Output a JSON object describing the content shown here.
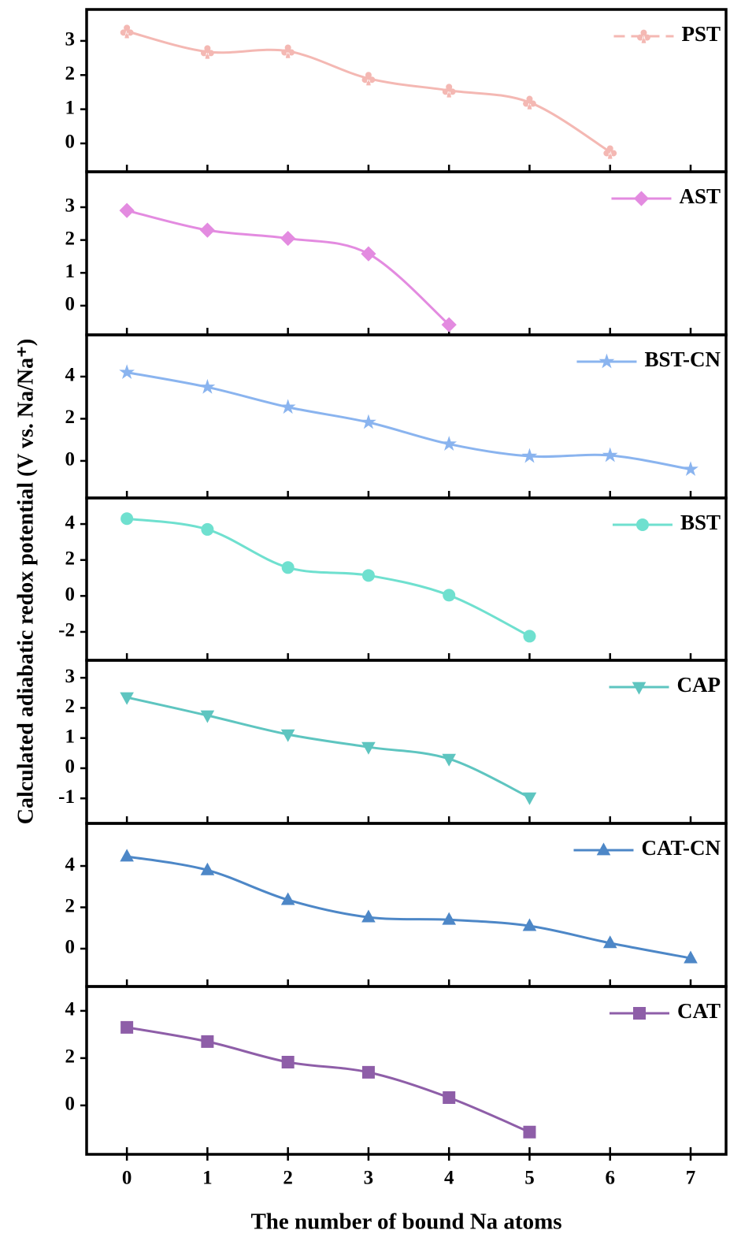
{
  "chart_data": [
    {
      "type": "line",
      "ylabel": "Calculated adiabatic redox potential (V vs. Na/Na⁺)",
      "xlim": [
        -0.5,
        7.44
      ],
      "xticks": [
        0,
        1,
        2,
        3,
        4,
        5,
        6,
        7
      ],
      "ylim": [
        -0.83,
        3.92
      ],
      "yticks": [
        0,
        1,
        2,
        3
      ],
      "series": [
        {
          "name": "PST",
          "color": "#f4b8b3",
          "marker": "club",
          "dashed_legend": true,
          "x": [
            0,
            1,
            2,
            3,
            4,
            5,
            6
          ],
          "values": [
            3.28,
            2.68,
            2.7,
            1.9,
            1.55,
            1.2,
            -0.25
          ]
        }
      ]
    },
    {
      "type": "line",
      "xlim": [
        -0.5,
        7.44
      ],
      "xticks": [
        0,
        1,
        2,
        3,
        4,
        5,
        6,
        7
      ],
      "ylim": [
        -0.89,
        4.08
      ],
      "yticks": [
        0,
        1,
        2,
        3
      ],
      "series": [
        {
          "name": "AST",
          "color": "#e38be0",
          "marker": "diamond",
          "x": [
            0,
            1,
            2,
            3,
            4
          ],
          "values": [
            2.9,
            2.3,
            2.05,
            1.58,
            -0.58
          ]
        }
      ]
    },
    {
      "type": "line",
      "xlim": [
        -0.5,
        7.44
      ],
      "xticks": [
        0,
        1,
        2,
        3,
        4,
        5,
        6,
        7
      ],
      "ylim": [
        -1.76,
        5.98
      ],
      "yticks": [
        0,
        2,
        4
      ],
      "series": [
        {
          "name": "BST-CN",
          "color": "#8ab4ef",
          "marker": "star",
          "x": [
            0,
            1,
            2,
            3,
            4,
            5,
            6,
            7
          ],
          "values": [
            4.2,
            3.5,
            2.55,
            1.83,
            0.8,
            0.22,
            0.26,
            -0.4
          ]
        }
      ]
    },
    {
      "type": "line",
      "xlim": [
        -0.5,
        7.44
      ],
      "xticks": [
        0,
        1,
        2,
        3,
        4,
        5,
        6,
        7
      ],
      "ylim": [
        -3.58,
        5.45
      ],
      "yticks": [
        -2,
        0,
        2,
        4
      ],
      "series": [
        {
          "name": "BST",
          "color": "#6fe0cf",
          "marker": "circle",
          "x": [
            0,
            1,
            2,
            3,
            4,
            5
          ],
          "values": [
            4.3,
            3.7,
            1.58,
            1.14,
            0.04,
            -2.24
          ]
        }
      ]
    },
    {
      "type": "line",
      "xlim": [
        -0.5,
        7.44
      ],
      "xticks": [
        0,
        1,
        2,
        3,
        4,
        5,
        6,
        7
      ],
      "ylim": [
        -1.83,
        3.58
      ],
      "yticks": [
        -1,
        0,
        1,
        2,
        3
      ],
      "series": [
        {
          "name": "CAP",
          "color": "#5ec5c0",
          "marker": "triangle-down",
          "x": [
            0,
            1,
            2,
            3,
            4,
            5
          ],
          "values": [
            2.35,
            1.75,
            1.12,
            0.7,
            0.31,
            -0.97
          ]
        }
      ]
    },
    {
      "type": "line",
      "xlim": [
        -0.5,
        7.44
      ],
      "xticks": [
        0,
        1,
        2,
        3,
        4,
        5,
        6,
        7
      ],
      "ylim": [
        -1.83,
        6.06
      ],
      "yticks": [
        0,
        2,
        4
      ],
      "series": [
        {
          "name": "CAT-CN",
          "color": "#4d87c7",
          "marker": "triangle-up",
          "x": [
            0,
            1,
            2,
            3,
            4,
            5,
            6,
            7
          ],
          "values": [
            4.46,
            3.8,
            2.36,
            1.52,
            1.4,
            1.1,
            0.27,
            -0.46
          ]
        }
      ]
    },
    {
      "type": "line",
      "xlabel": "The number of bound Na atoms",
      "xlim": [
        -0.5,
        7.44
      ],
      "xticks": [
        0,
        1,
        2,
        3,
        4,
        5,
        6,
        7
      ],
      "ylim": [
        -2.07,
        5.03
      ],
      "yticks": [
        0,
        2,
        4
      ],
      "series": [
        {
          "name": "CAT",
          "color": "#8e5ea8",
          "marker": "square",
          "x": [
            0,
            1,
            2,
            3,
            4,
            5
          ],
          "values": [
            3.3,
            2.7,
            1.83,
            1.4,
            0.33,
            -1.13
          ]
        }
      ]
    }
  ]
}
